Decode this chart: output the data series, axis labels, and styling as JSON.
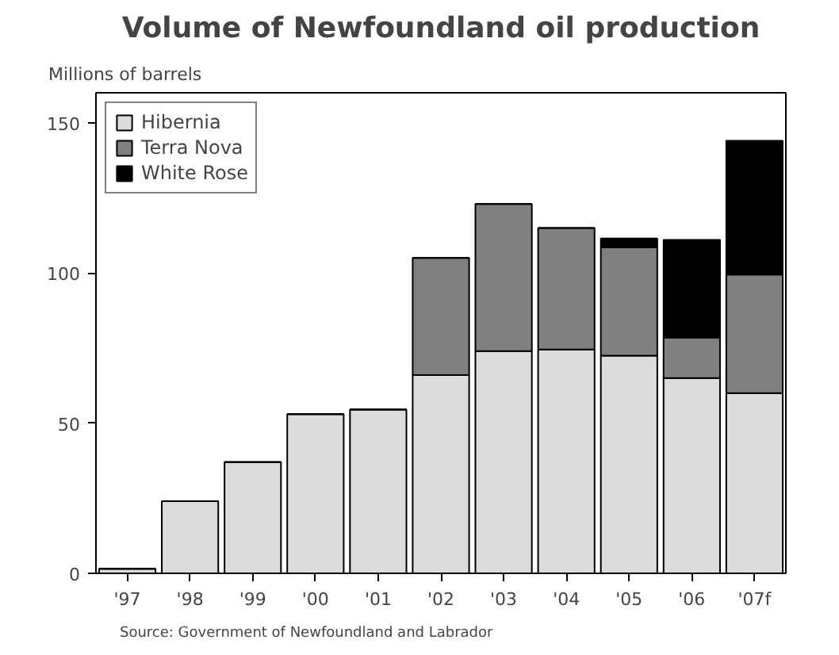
{
  "chart_data": {
    "type": "bar",
    "stacked": true,
    "title": "Volume of Newfoundland oil production",
    "ylabel": "Millions of barrels",
    "categories": [
      "'97",
      "'98",
      "'99",
      "'00",
      "'01",
      "'02",
      "'03",
      "'04",
      "'05",
      "'06",
      "'07f"
    ],
    "series": [
      {
        "name": "Hibernia",
        "color": "#dcdcdc",
        "values": [
          1.5,
          24,
          37,
          53,
          54.5,
          66,
          74,
          74.5,
          72.5,
          65,
          60
        ]
      },
      {
        "name": "Terra Nova",
        "color": "#808080",
        "values": [
          0,
          0,
          0,
          0,
          0,
          39,
          49,
          40.5,
          36,
          13.5,
          39.5
        ]
      },
      {
        "name": "White Rose",
        "color": "#000000",
        "values": [
          0,
          0,
          0,
          0,
          0,
          0,
          0,
          0,
          3,
          32.5,
          44.5
        ]
      }
    ],
    "ylim": [
      0,
      160
    ],
    "yticks": [
      0,
      50,
      100,
      150
    ],
    "grid": false,
    "legend": "top left",
    "annotations": [
      "Source:  Government of Newfoundland and Labrador"
    ]
  }
}
